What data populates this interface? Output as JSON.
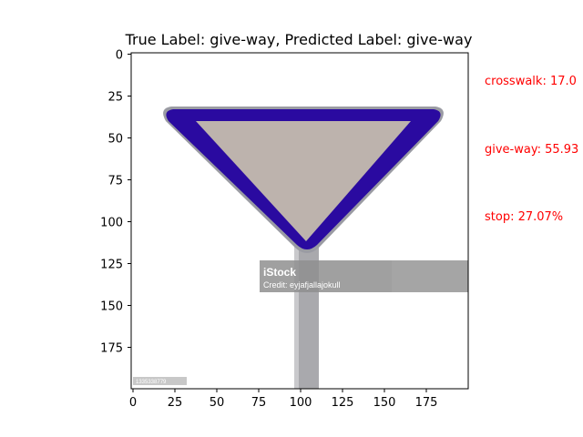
{
  "title": "True Label: give-way, Predicted Label: give-way",
  "image": {
    "watermark_brand": "iStock",
    "watermark_credit": "Credit: eyjafjallajokull",
    "corner_id": "1335338779"
  },
  "axes": {
    "xticks": [
      "0",
      "25",
      "50",
      "75",
      "100",
      "125",
      "150",
      "175"
    ],
    "yticks": [
      "0",
      "25",
      "50",
      "75",
      "100",
      "125",
      "150",
      "175"
    ],
    "xlim": [
      0,
      200
    ],
    "ylim": [
      0,
      200
    ]
  },
  "predictions": [
    {
      "text": "crosswalk: 17.0"
    },
    {
      "text": "give-way: 55.93"
    },
    {
      "text": "stop: 27.07%"
    }
  ],
  "colors": {
    "prediction_text": "#ff0000",
    "sign_border": "#2a0aa0",
    "sign_inner": "#bdb3ad",
    "pole": "#a9a9ad"
  }
}
